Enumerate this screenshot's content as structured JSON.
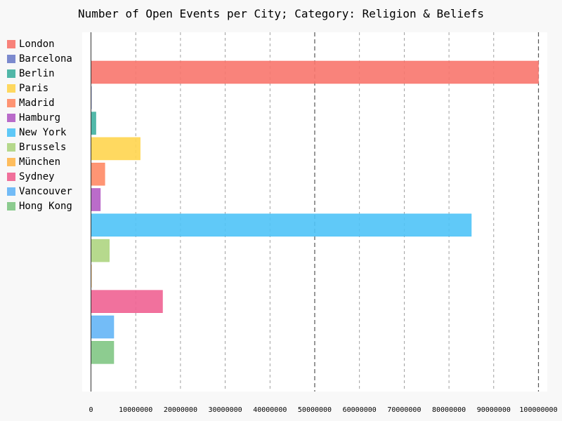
{
  "chart_data": {
    "type": "bar",
    "orientation": "horizontal",
    "title": "Number of Open Events per City; Category: Religion & Beliefs",
    "xlabel": "",
    "ylabel": "",
    "xlim": [
      0,
      100000000
    ],
    "grid": true,
    "legend_position": "left",
    "x_ticks": [
      0,
      10000000,
      20000000,
      30000000,
      40000000,
      50000000,
      60000000,
      70000000,
      80000000,
      90000000,
      100000000
    ],
    "x_tick_labels": [
      "0",
      "10000000",
      "20000000",
      "30000000",
      "40000000",
      "50000000",
      "60000000",
      "70000000",
      "80000000",
      "90000000",
      "100000000"
    ],
    "series": [
      {
        "name": "London",
        "value": 100000000,
        "color": "#f8766d"
      },
      {
        "name": "Barcelona",
        "value": 0,
        "color": "#6f7fca"
      },
      {
        "name": "Berlin",
        "value": 1100000,
        "color": "#3fb0a0"
      },
      {
        "name": "Paris",
        "value": 11000000,
        "color": "#ffd54f"
      },
      {
        "name": "Madrid",
        "value": 3100000,
        "color": "#ff8a65"
      },
      {
        "name": "Hamburg",
        "value": 2100000,
        "color": "#b35cc4"
      },
      {
        "name": "New York",
        "value": 85000000,
        "color": "#4fc3f7"
      },
      {
        "name": "Brussels",
        "value": 4100000,
        "color": "#aed581"
      },
      {
        "name": "München",
        "value": 100000,
        "color": "#ffb74d"
      },
      {
        "name": "Sydney",
        "value": 16000000,
        "color": "#f06292"
      },
      {
        "name": "Vancouver",
        "value": 5100000,
        "color": "#64b5f6"
      },
      {
        "name": "Hong Kong",
        "value": 5100000,
        "color": "#81c784"
      }
    ]
  }
}
